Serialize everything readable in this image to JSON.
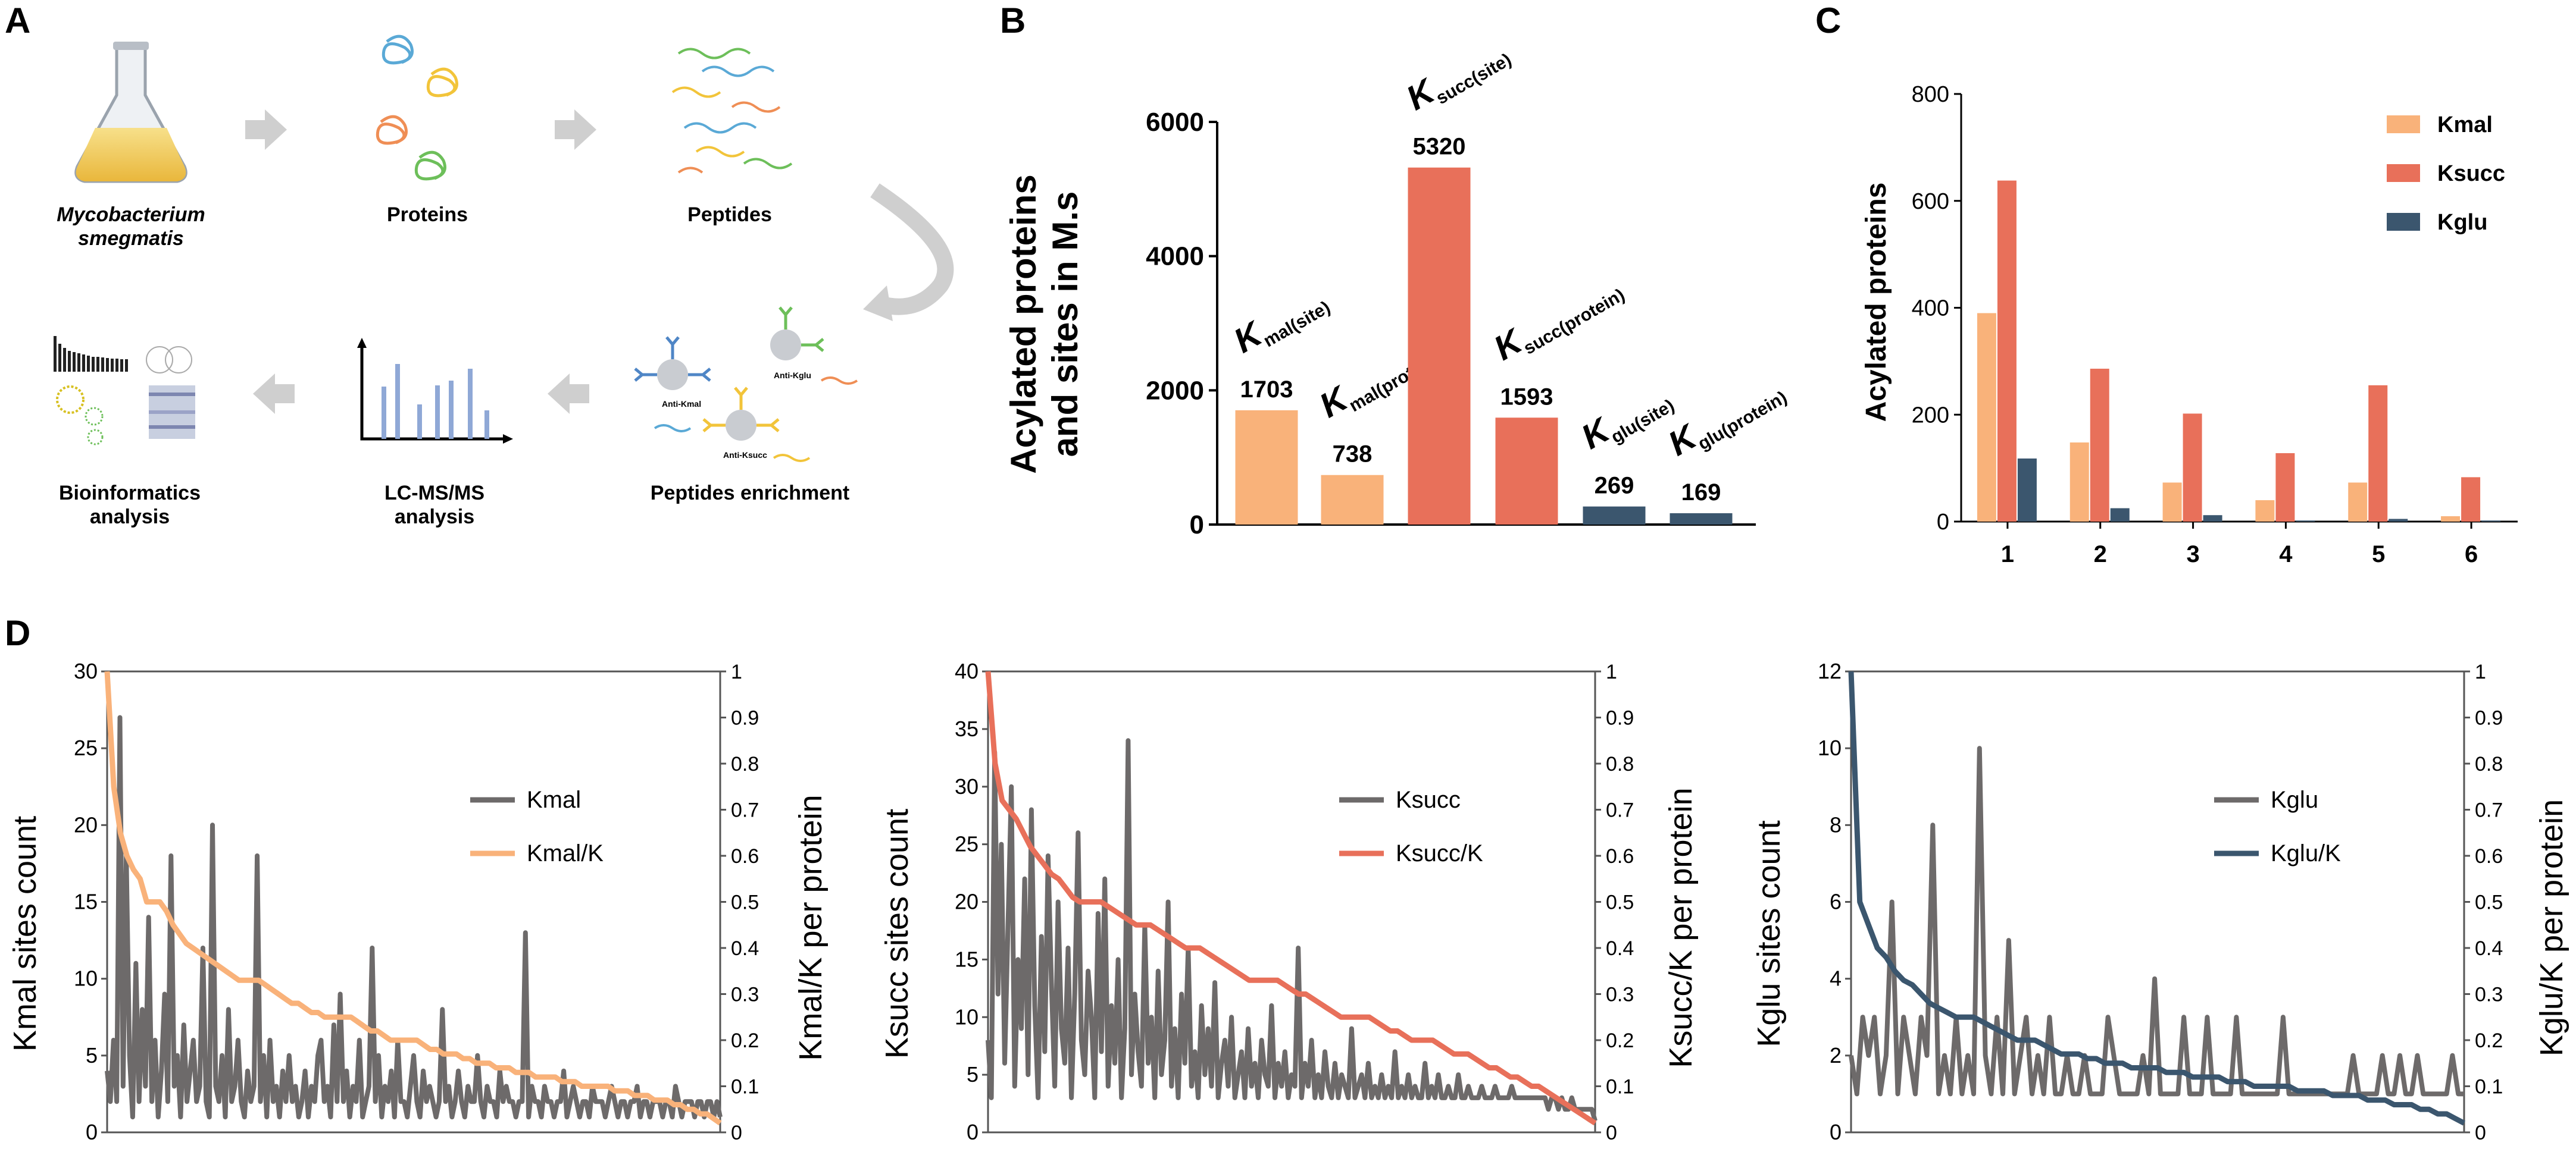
{
  "colors": {
    "kmal": "#f9b27a",
    "ksucc": "#e8705a",
    "kglu": "#3b566e",
    "gray": "#6d6a6a",
    "arrow": "#cfcfcf",
    "axis": "#000000"
  },
  "panelA": {
    "label": "A",
    "steps": [
      "Mycobacterium",
      "smegmatis",
      "Proteins",
      "Peptides",
      "Peptides enrichment",
      "LC-MS/MS",
      "analysis",
      "Bioinformatics",
      "analysis"
    ],
    "antibodies": [
      "Anti-Kmal",
      "Anti-Kglu",
      "Anti-Ksucc"
    ]
  },
  "chart_data": [
    {
      "id": "B",
      "type": "bar",
      "panel_label": "B",
      "ylabel_line1": "Acylated proteins",
      "ylabel_line2": "and sites in M.s",
      "ylim": [
        0,
        6000
      ],
      "yticks": [
        "0",
        "2000",
        "4000",
        "6000"
      ],
      "bar_labels": [
        {
          "main": "K",
          "sub": "mal(site)"
        },
        {
          "main": "K",
          "sub": "mal(protein)"
        },
        {
          "main": "K",
          "sub": "succ(site)"
        },
        {
          "main": "K",
          "sub": "succ(protein)"
        },
        {
          "main": "K",
          "sub": "glu(site)"
        },
        {
          "main": "K",
          "sub": "glu(protein)"
        }
      ],
      "values": [
        1703,
        738,
        5320,
        1593,
        269,
        169
      ],
      "value_labels": [
        "1703",
        "738",
        "5320",
        "1593",
        "269",
        "169"
      ],
      "bar_colors": [
        "kmal",
        "kmal",
        "ksucc",
        "ksucc",
        "kglu",
        "kglu"
      ]
    },
    {
      "id": "C",
      "type": "bar",
      "panel_label": "C",
      "ylabel": "Acylated proteins",
      "ylim": [
        0,
        800
      ],
      "yticks": [
        "0",
        "200",
        "400",
        "600",
        "800"
      ],
      "categories": [
        "1",
        "2",
        "3",
        "4",
        "5",
        "6"
      ],
      "series": [
        {
          "name": "Kmal",
          "color": "kmal",
          "values": [
            390,
            148,
            73,
            40,
            73,
            10
          ]
        },
        {
          "name": "Ksucc",
          "color": "ksucc",
          "values": [
            638,
            286,
            202,
            128,
            255,
            83
          ]
        },
        {
          "name": "Kglu",
          "color": "kglu",
          "values": [
            118,
            25,
            12,
            2,
            5,
            2
          ]
        }
      ],
      "legend": "top-right"
    },
    {
      "id": "D1",
      "type": "line",
      "panel_label": "D",
      "left_label": "Kmal sites count",
      "right_label": "Kmal/K per protein",
      "left_ylim": [
        0,
        30
      ],
      "left_yticks": [
        "0",
        "5",
        "10",
        "15",
        "20",
        "25",
        "30"
      ],
      "right_ylim": [
        0,
        1
      ],
      "right_yticks": [
        "0",
        "0.1",
        "0.2",
        "0.3",
        "0.4",
        "0.5",
        "0.6",
        "0.7",
        "0.8",
        "0.9",
        "1"
      ],
      "series": [
        {
          "name": "Kmal",
          "color": "gray",
          "axis": "left",
          "values": [
            4,
            2,
            6,
            2,
            27,
            3,
            18,
            5,
            1,
            11,
            2,
            8,
            3,
            14,
            2,
            6,
            1,
            4,
            9,
            2,
            18,
            3,
            5,
            1,
            7,
            2,
            4,
            6,
            2,
            3,
            12,
            2,
            1,
            20,
            3,
            2,
            5,
            1,
            8,
            2,
            3,
            6,
            2,
            1,
            4,
            2,
            3,
            18,
            2,
            5,
            1,
            6,
            2,
            3,
            1,
            4,
            2,
            5,
            2,
            3,
            1,
            2,
            4,
            1,
            3,
            2,
            5,
            6,
            2,
            3,
            1,
            7,
            2,
            9,
            2,
            4,
            1,
            3,
            2,
            6,
            1,
            2,
            3,
            12,
            2,
            5,
            1,
            3,
            2,
            4,
            1,
            6,
            2,
            2,
            1,
            3,
            5,
            2,
            1,
            4,
            2,
            3,
            2,
            1,
            2,
            8,
            2,
            3,
            1,
            2,
            4,
            2,
            1,
            3,
            2,
            2,
            5,
            2,
            1,
            3,
            2,
            2,
            1,
            4,
            2,
            3,
            2,
            2,
            1,
            2,
            2,
            13,
            1,
            3,
            2,
            2,
            1,
            3,
            2,
            2,
            1,
            2,
            2,
            4,
            1,
            2,
            3,
            2,
            1,
            2,
            2,
            1,
            3,
            2,
            2,
            2,
            1,
            2,
            3,
            2,
            1,
            2,
            2,
            1,
            2,
            2,
            3,
            1,
            2,
            2,
            1,
            2,
            2,
            2,
            1,
            2,
            2,
            1,
            3,
            2,
            1,
            2,
            2,
            2,
            1,
            2,
            2,
            1,
            2,
            2,
            1,
            2,
            1
          ]
        },
        {
          "name": "Kmal/K",
          "color": "kmal",
          "axis": "right",
          "values": [
            1,
            0.75,
            0.65,
            0.6,
            0.57,
            0.55,
            0.5,
            0.5,
            0.5,
            0.48,
            0.45,
            0.43,
            0.41,
            0.4,
            0.39,
            0.38,
            0.37,
            0.36,
            0.35,
            0.34,
            0.33,
            0.33,
            0.33,
            0.33,
            0.32,
            0.31,
            0.3,
            0.29,
            0.28,
            0.28,
            0.27,
            0.26,
            0.26,
            0.25,
            0.25,
            0.25,
            0.25,
            0.25,
            0.24,
            0.23,
            0.22,
            0.22,
            0.21,
            0.2,
            0.2,
            0.2,
            0.2,
            0.2,
            0.19,
            0.18,
            0.18,
            0.17,
            0.17,
            0.17,
            0.16,
            0.16,
            0.15,
            0.15,
            0.15,
            0.14,
            0.14,
            0.14,
            0.13,
            0.13,
            0.13,
            0.12,
            0.12,
            0.12,
            0.12,
            0.11,
            0.11,
            0.11,
            0.1,
            0.1,
            0.1,
            0.1,
            0.1,
            0.09,
            0.09,
            0.09,
            0.08,
            0.08,
            0.08,
            0.07,
            0.07,
            0.07,
            0.06,
            0.06,
            0.05,
            0.05,
            0.04,
            0.04,
            0.03,
            0.02
          ]
        }
      ],
      "legend": "right"
    },
    {
      "id": "D2",
      "type": "line",
      "left_label": "Ksucc sites count",
      "right_label": "Ksucc/K per protein",
      "left_ylim": [
        0,
        40
      ],
      "left_yticks": [
        "0",
        "5",
        "10",
        "15",
        "20",
        "25",
        "30",
        "35",
        "40"
      ],
      "right_ylim": [
        0,
        1
      ],
      "right_yticks": [
        "0",
        "0.1",
        "0.2",
        "0.3",
        "0.4",
        "0.5",
        "0.6",
        "0.7",
        "0.8",
        "0.9",
        "1"
      ],
      "series": [
        {
          "name": "Ksucc",
          "color": "gray",
          "axis": "left",
          "values": [
            8,
            3,
            33,
            12,
            25,
            6,
            18,
            30,
            4,
            15,
            9,
            22,
            5,
            28,
            11,
            3,
            17,
            7,
            24,
            13,
            4,
            20,
            9,
            6,
            16,
            3,
            12,
            26,
            8,
            5,
            14,
            10,
            3,
            19,
            7,
            22,
            4,
            11,
            6,
            15,
            3,
            9,
            34,
            5,
            12,
            7,
            4,
            18,
            6,
            10,
            3,
            14,
            5,
            8,
            20,
            4,
            9,
            3,
            12,
            6,
            16,
            4,
            7,
            3,
            11,
            5,
            9,
            4,
            13,
            3,
            6,
            8,
            4,
            10,
            3,
            5,
            7,
            3,
            9,
            4,
            6,
            3,
            8,
            5,
            4,
            11,
            3,
            6,
            4,
            7,
            3,
            5,
            4,
            16,
            3,
            6,
            4,
            8,
            3,
            5,
            3,
            7,
            4,
            3,
            6,
            3,
            5,
            4,
            3,
            9,
            3,
            4,
            5,
            3,
            6,
            3,
            4,
            3,
            5,
            3,
            4,
            3,
            7,
            3,
            4,
            3,
            5,
            3,
            4,
            3,
            3,
            6,
            3,
            4,
            3,
            5,
            3,
            3,
            4,
            3,
            3,
            5,
            3,
            3,
            4,
            3,
            3,
            3,
            4,
            3,
            3,
            3,
            4,
            3,
            3,
            3,
            3,
            4,
            3,
            3,
            3,
            3,
            3,
            3,
            3,
            3,
            3,
            3,
            2,
            3,
            3,
            2,
            3,
            2,
            2,
            3,
            2,
            2,
            2,
            2,
            2,
            2,
            1
          ]
        },
        {
          "name": "Ksucc/K",
          "color": "ksucc",
          "axis": "right",
          "values": [
            1,
            0.8,
            0.72,
            0.7,
            0.68,
            0.65,
            0.62,
            0.6,
            0.58,
            0.56,
            0.55,
            0.53,
            0.51,
            0.5,
            0.5,
            0.5,
            0.5,
            0.49,
            0.48,
            0.47,
            0.46,
            0.45,
            0.45,
            0.45,
            0.44,
            0.43,
            0.42,
            0.41,
            0.4,
            0.4,
            0.4,
            0.39,
            0.38,
            0.37,
            0.36,
            0.35,
            0.34,
            0.33,
            0.33,
            0.33,
            0.33,
            0.33,
            0.32,
            0.31,
            0.3,
            0.3,
            0.29,
            0.28,
            0.27,
            0.26,
            0.25,
            0.25,
            0.25,
            0.25,
            0.25,
            0.24,
            0.23,
            0.22,
            0.22,
            0.21,
            0.2,
            0.2,
            0.2,
            0.2,
            0.19,
            0.18,
            0.17,
            0.17,
            0.17,
            0.16,
            0.15,
            0.14,
            0.14,
            0.13,
            0.12,
            0.12,
            0.11,
            0.1,
            0.1,
            0.09,
            0.08,
            0.07,
            0.06,
            0.05,
            0.04,
            0.03,
            0.02
          ]
        }
      ],
      "legend": "right"
    },
    {
      "id": "D3",
      "type": "line",
      "left_label": "Kglu sites count",
      "right_label": "Kglu/K per protein",
      "left_ylim": [
        0,
        12
      ],
      "left_yticks": [
        "0",
        "2",
        "4",
        "6",
        "8",
        "10",
        "12"
      ],
      "right_ylim": [
        0,
        1
      ],
      "right_yticks": [
        "0",
        "0.1",
        "0.2",
        "0.3",
        "0.4",
        "0.5",
        "0.6",
        "0.7",
        "0.8",
        "0.9",
        "1"
      ],
      "series": [
        {
          "name": "Kglu",
          "color": "gray",
          "axis": "left",
          "values": [
            2,
            1,
            3,
            2,
            3,
            1,
            2,
            6,
            1,
            3,
            2,
            1,
            3,
            2,
            8,
            1,
            2,
            1,
            3,
            1,
            2,
            1,
            10,
            2,
            1,
            3,
            1,
            5,
            1,
            2,
            3,
            1,
            2,
            1,
            3,
            1,
            1,
            2,
            1,
            1,
            2,
            1,
            1,
            1,
            3,
            2,
            1,
            1,
            1,
            1,
            2,
            1,
            4,
            1,
            1,
            1,
            1,
            3,
            1,
            1,
            1,
            3,
            1,
            1,
            1,
            1,
            3,
            1,
            1,
            1,
            1,
            1,
            1,
            1,
            3,
            1,
            1,
            1,
            1,
            1,
            1,
            1,
            1,
            1,
            1,
            1,
            2,
            1,
            1,
            1,
            1,
            2,
            1,
            1,
            2,
            1,
            1,
            2,
            1,
            1,
            1,
            1,
            1,
            2,
            1,
            1
          ]
        },
        {
          "name": "Kglu/K",
          "color": "kglu",
          "axis": "right",
          "values": [
            1,
            0.5,
            0.45,
            0.4,
            0.38,
            0.35,
            0.33,
            0.32,
            0.3,
            0.28,
            0.27,
            0.26,
            0.25,
            0.25,
            0.25,
            0.24,
            0.23,
            0.22,
            0.21,
            0.2,
            0.2,
            0.2,
            0.19,
            0.18,
            0.17,
            0.17,
            0.17,
            0.16,
            0.16,
            0.15,
            0.15,
            0.15,
            0.14,
            0.14,
            0.14,
            0.14,
            0.13,
            0.13,
            0.13,
            0.12,
            0.12,
            0.12,
            0.12,
            0.11,
            0.11,
            0.11,
            0.1,
            0.1,
            0.1,
            0.1,
            0.1,
            0.09,
            0.09,
            0.09,
            0.09,
            0.08,
            0.08,
            0.08,
            0.08,
            0.07,
            0.07,
            0.07,
            0.06,
            0.06,
            0.06,
            0.05,
            0.05,
            0.04,
            0.04,
            0.03,
            0.02
          ]
        }
      ],
      "legend": "right"
    }
  ]
}
